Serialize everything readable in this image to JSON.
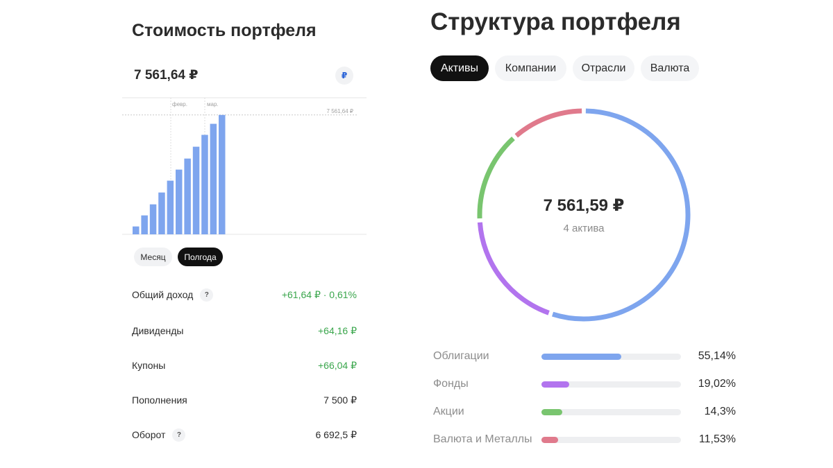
{
  "left": {
    "title": "Стоимость портфеля",
    "value": "7 561,64 ₽",
    "currency_symbol": "₽",
    "chart": {
      "month_labels": [
        "февр.",
        "мар."
      ],
      "ref_label": "7 561,64 ₽"
    },
    "periods": {
      "month": "Месяц",
      "halfyear": "Полгода"
    },
    "stats": [
      {
        "label": "Общий доход",
        "value": "+61,64 ₽ · 0,61%",
        "help": "?"
      },
      {
        "label": "Дивиденды",
        "value": "+64,16 ₽"
      },
      {
        "label": "Купоны",
        "value": "+66,04 ₽"
      },
      {
        "label": "Пополнения",
        "value": "7 500 ₽"
      },
      {
        "label": "Оборот",
        "value": "6 692,5 ₽",
        "help": "?"
      }
    ]
  },
  "chart_data": {
    "type": "bar",
    "title": "",
    "categories": [
      "1",
      "2",
      "3",
      "4",
      "5",
      "6",
      "7",
      "8",
      "9",
      "10",
      "11"
    ],
    "values": [
      500,
      1200,
      1900,
      2650,
      3400,
      4100,
      4800,
      5550,
      6300,
      7000,
      7561.64
    ],
    "ylim": [
      0,
      8650
    ],
    "reference_line": 7561.64,
    "color": "#7ea5ee"
  },
  "right": {
    "title": "Структура портфеля",
    "tabs": [
      "Активы",
      "Компании",
      "Отрасли",
      "Валюта"
    ],
    "total": "7 561,59 ₽",
    "count": "4 актива",
    "allocation": [
      {
        "label": "Облигации",
        "pct": "55,14%",
        "value": 55.14,
        "color": "#7ea5ee"
      },
      {
        "label": "Фонды",
        "pct": "19,02%",
        "value": 19.02,
        "color": "#b274ee"
      },
      {
        "label": "Акции",
        "pct": "14,3%",
        "value": 14.3,
        "color": "#79c56f"
      },
      {
        "label": "Валюта и Металлы",
        "pct": "11,53%",
        "value": 11.53,
        "color": "#e07a8c"
      }
    ]
  }
}
